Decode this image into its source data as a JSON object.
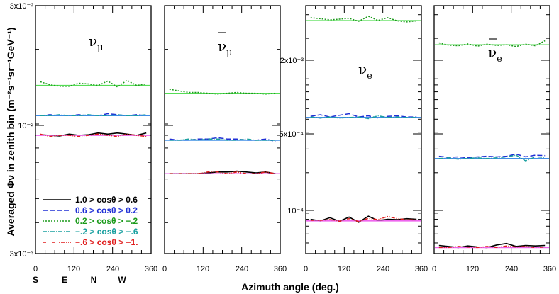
{
  "figure": {
    "ylabel": "Averaged  Φν  in zenith bin  (m⁻²s⁻¹sr⁻¹GeV⁻¹)",
    "xlabel": "Azimuth angle (deg.)",
    "direction_labels": [
      "S",
      "E",
      "N",
      "W"
    ],
    "x_tick_labels": [
      "0",
      "120",
      "240",
      "360"
    ],
    "left_axis_labels": [
      "3x10⁻²",
      "10⁻²",
      "3x10⁻³"
    ],
    "right_axis_labels": [
      "2x10⁻³",
      "5x10⁻⁴",
      "10⁻⁴"
    ]
  },
  "legend": {
    "entries": [
      {
        "label": "1.0 > cosθ > 0.6",
        "color": "#000000"
      },
      {
        "label": "0.6 > cosθ > 0.2",
        "color": "#1f2fd6"
      },
      {
        "label": "0.2 > cosθ > −.2",
        "color": "#1a9a1a"
      },
      {
        "label": "−.2 > cosθ > −.6",
        "color": "#1aa0a0"
      },
      {
        "label": "−.6 > cosθ > −1.",
        "color": "#e01c1c"
      }
    ]
  },
  "chart_data": [
    {
      "type": "line",
      "title": "νμ",
      "x": [
        15,
        45,
        75,
        105,
        135,
        165,
        195,
        225,
        255,
        285,
        315,
        345
      ],
      "xlim": [
        0,
        360
      ],
      "ylim": [
        0.003,
        0.03
      ],
      "yscale": "log",
      "grid": false,
      "series": [
        {
          "name": "1.0 > cosθ > 0.6",
          "values": [
            0.00905,
            0.009,
            0.00895,
            0.0091,
            0.009,
            0.00905,
            0.0092,
            0.0091,
            0.0092,
            0.0091,
            0.009,
            0.0092
          ],
          "ref": 0.009
        },
        {
          "name": "0.6 > cosθ > 0.2",
          "values": [
            0.0108,
            0.0109,
            0.0108,
            0.0108,
            0.0109,
            0.0108,
            0.0108,
            0.011,
            0.0109,
            0.0108,
            0.0109,
            0.0108
          ],
          "ref": 0.0108
        },
        {
          "name": "0.2 > cosθ > −.2",
          "values": [
            0.0148,
            0.0144,
            0.0142,
            0.0142,
            0.0146,
            0.0145,
            0.0143,
            0.0149,
            0.0141,
            0.015,
            0.0143,
            0.0145
          ],
          "ref": 0.0143
        },
        {
          "name": "−.2 > cosθ > −.6",
          "values": [
            0.0108,
            0.0108,
            0.0109,
            0.0108,
            0.0108,
            0.0109,
            0.0108,
            0.0108,
            0.0109,
            0.0108,
            0.0108,
            0.0109
          ],
          "ref": 0.0108
        },
        {
          "name": "−.6 > cosθ > −1.",
          "values": [
            0.0091,
            0.0089,
            0.009,
            0.009,
            0.0089,
            0.009,
            0.0091,
            0.009,
            0.0089,
            0.0091,
            0.009,
            0.0089
          ],
          "ref": 0.009
        }
      ]
    },
    {
      "type": "line",
      "title": "ν̅μ",
      "x": [
        15,
        45,
        75,
        105,
        135,
        165,
        195,
        225,
        255,
        285,
        315,
        345
      ],
      "xlim": [
        0,
        360
      ],
      "ylim": [
        0.003,
        0.03
      ],
      "yscale": "log",
      "grid": false,
      "series": [
        {
          "name": "1.0 > cosθ > 0.6",
          "values": [
            0.0063,
            0.0063,
            0.0063,
            0.0063,
            0.00635,
            0.0064,
            0.0064,
            0.00645,
            0.0064,
            0.00635,
            0.0064,
            0.0063
          ],
          "ref": 0.0063
        },
        {
          "name": "0.6 > cosθ > 0.2",
          "values": [
            0.0087,
            0.0086,
            0.0086,
            0.0087,
            0.0087,
            0.0088,
            0.0087,
            0.0087,
            0.0086,
            0.0086,
            0.0087,
            0.0085
          ],
          "ref": 0.0086
        },
        {
          "name": "0.2 > cosθ > −.2",
          "values": [
            0.0138,
            0.0136,
            0.0134,
            0.0134,
            0.0133,
            0.0132,
            0.0133,
            0.0134,
            0.0133,
            0.0133,
            0.0132,
            0.0133
          ],
          "ref": 0.0133
        },
        {
          "name": "−.2 > cosθ > −.6",
          "values": [
            0.0086,
            0.0086,
            0.0087,
            0.0086,
            0.0087,
            0.0087,
            0.0086,
            0.0086,
            0.0087,
            0.0086,
            0.0086,
            0.0086
          ],
          "ref": 0.0086
        },
        {
          "name": "−.6 > cosθ > −1.",
          "values": [
            0.0063,
            0.0063,
            0.0063,
            0.0063,
            0.0064,
            0.0064,
            0.0063,
            0.0064,
            0.0063,
            0.0063,
            0.0064,
            0.0063
          ],
          "ref": 0.0063
        }
      ]
    },
    {
      "type": "line",
      "title": "νe",
      "x": [
        15,
        45,
        75,
        105,
        135,
        165,
        195,
        225,
        255,
        285,
        315,
        345
      ],
      "xlim": [
        0,
        360
      ],
      "ylim": [
        5e-05,
        0.0035
      ],
      "yscale": "log",
      "grid": false,
      "series": [
        {
          "name": "1.0 > cosθ > 0.6",
          "values": [
            9e-05,
            8.75e-05,
            9.25e-05,
            8.7e-05,
            9.35e-05,
            8.55e-05,
            9.5e-05,
            8.8e-05,
            9e-05,
            8.95e-05,
            9.1e-05,
            9e-05
          ],
          "ref": 8.85e-05
        },
        {
          "name": "0.6 > cosθ > 0.2",
          "values": [
            0.000525,
            0.00054,
            0.00052,
            0.000535,
            0.00055,
            0.00052,
            0.00053,
            0.00051,
            0.000525,
            0.00053,
            0.00052,
            0.00052
          ],
          "ref": 0.000515
        },
        {
          "name": "0.2 > cosθ > −.2",
          "values": [
            0.00285,
            0.0028,
            0.00275,
            0.00278,
            0.00282,
            0.00268,
            0.00292,
            0.00272,
            0.00285,
            0.0027,
            0.00265,
            0.0027
          ],
          "ref": 0.00271
        },
        {
          "name": "−.2 > cosθ > −.6",
          "values": [
            0.00052,
            0.00051,
            0.00052,
            0.00051,
            0.000515,
            0.00052,
            0.000505,
            0.00053,
            0.000515,
            0.00052,
            0.000515,
            0.000515
          ],
          "ref": 0.000515
        },
        {
          "name": "−.6 > cosθ > −1.",
          "values": [
            8.85e-05,
            8.85e-05,
            8.95e-05,
            8.7e-05,
            9.1e-05,
            8.65e-05,
            9.15e-05,
            8.95e-05,
            9.45e-05,
            9.1e-05,
            8.95e-05,
            8.9e-05
          ],
          "ref": 8.75e-05
        }
      ]
    },
    {
      "type": "line",
      "title": "ν̅e",
      "x": [
        15,
        45,
        75,
        105,
        135,
        165,
        195,
        225,
        255,
        285,
        315,
        345
      ],
      "xlim": [
        0,
        360
      ],
      "ylim": [
        5e-05,
        0.0035
      ],
      "yscale": "log",
      "grid": false,
      "series": [
        {
          "name": "1.0 > cosθ > 0.6",
          "values": [
            5.75e-05,
            5.65e-05,
            5.55e-05,
            5.7e-05,
            5.6e-05,
            5.55e-05,
            5.8e-05,
            5.95e-05,
            5.65e-05,
            5.75e-05,
            5.7e-05,
            5.75e-05
          ],
          "ref": 5.55e-05
        },
        {
          "name": "0.6 > cosθ > 0.2",
          "values": [
            0.000265,
            0.00026,
            0.000262,
            0.000258,
            0.000262,
            0.000265,
            0.000262,
            0.000265,
            0.000275,
            0.000262,
            0.00027,
            0.000268
          ],
          "ref": 0.000255
        },
        {
          "name": "0.2 > cosθ > −.2",
          "values": [
            0.00185,
            0.00178,
            0.00176,
            0.00182,
            0.00175,
            0.00181,
            0.00177,
            0.00179,
            0.00174,
            0.00181,
            0.00176,
            0.00192
          ],
          "ref": 0.00179
        },
        {
          "name": "−.2 > cosθ > −.6",
          "values": [
            0.000255,
            0.000258,
            0.000252,
            0.000256,
            0.000258,
            0.000255,
            0.000258,
            0.000262,
            0.00027,
            0.000245,
            0.000262,
            0.00026
          ],
          "ref": 0.000255
        },
        {
          "name": "−.6 > cosθ > −1.",
          "values": [
            5.55e-05,
            5.55e-05,
            5.65e-05,
            5.6e-05,
            5.55e-05,
            5.65e-05,
            5.55e-05,
            5.7e-05,
            5.6e-05,
            5.65e-05,
            5.55e-05,
            5.6e-05
          ],
          "ref": 5.55e-05
        }
      ]
    }
  ]
}
